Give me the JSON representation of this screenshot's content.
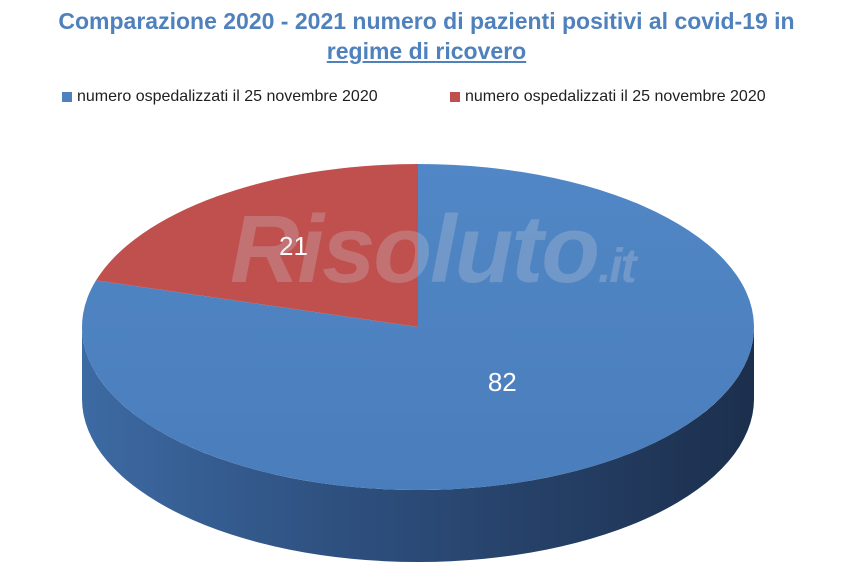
{
  "title": {
    "line1": "Comparazione 2020 - 2021 numero di pazienti positivi al covid-19 in",
    "line2": "regime di ricovero"
  },
  "watermark": "Risoluto.it",
  "colors": {
    "blue": "#4f81bd",
    "red": "#c0504d",
    "title": "#4f81bd"
  },
  "chart_data": {
    "type": "pie",
    "title": "Comparazione 2020 - 2021 numero di pazienti positivi al covid-19 in regime di ricovero",
    "legend_position": "top",
    "slices": [
      {
        "label": "numero ospedalizzati il 25 novembre 2020",
        "value": 82,
        "color": "#4f81bd"
      },
      {
        "label": "numero ospedalizzati il 25 novembre 2020",
        "value": 21,
        "color": "#c0504d"
      }
    ]
  }
}
